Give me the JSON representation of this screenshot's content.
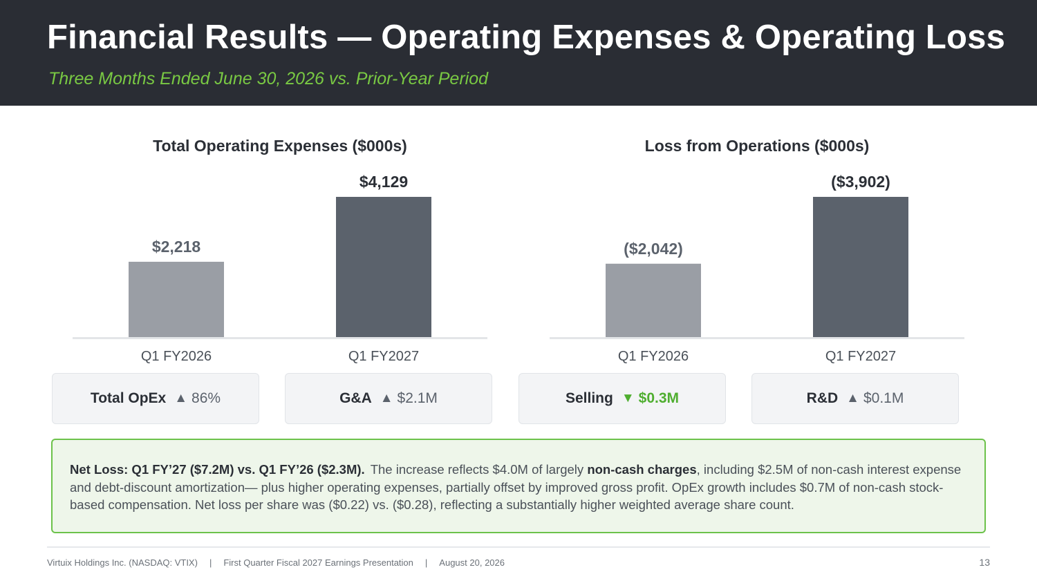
{
  "header": {
    "title": "Financial Results — Operating Expenses & Operating Loss",
    "subtitle": "Three Months Ended June 30, 2026 vs. Prior-Year Period"
  },
  "colors": {
    "header_bg": "#2a2d34",
    "accent_green": "#79c943",
    "bar_prior": "#9a9ea5",
    "bar_current": "#5b626c"
  },
  "chart_data": [
    {
      "type": "bar",
      "title": "Total Operating Expenses  ($000s)",
      "categories": [
        "Q1 FY2026",
        "Q1 FY2027"
      ],
      "values": [
        2218,
        4129
      ],
      "labels": [
        "$2,218",
        "$4,129"
      ]
    },
    {
      "type": "bar",
      "title": "Loss from Operations  ($000s)",
      "categories": [
        "Q1 FY2026",
        "Q1 FY2027"
      ],
      "values": [
        -2042,
        -3902
      ],
      "labels": [
        "($2,042)",
        "($3,902)"
      ]
    }
  ],
  "cards": [
    {
      "label": "Total OpEx",
      "direction": "up",
      "arrow": "▲",
      "value": "86%"
    },
    {
      "label": "G&A",
      "direction": "up",
      "arrow": "▲",
      "value": "$2.1M"
    },
    {
      "label": "Selling",
      "direction": "down",
      "arrow": "▼",
      "value": "$0.3M"
    },
    {
      "label": "R&D",
      "direction": "up",
      "arrow": "▲",
      "value": "$0.1M"
    }
  ],
  "note": {
    "lead": "Net Loss:  Q1 FY’27 ($7.2M) vs. Q1 FY’26 ($2.3M).",
    "text1": "The increase reflects $4.0M of largely ",
    "strong": "non-cash charges",
    "text2": ", including $2.5M of non-cash interest expense and debt-discount amortization— plus higher operating expenses, partially offset by improved gross profit. OpEx growth includes $0.7M of non-cash stock-based compensation. Net loss per share was ($0.22) vs. ($0.28), reflecting a substantially higher weighted average share count."
  },
  "footer": {
    "company": "Virtuix Holdings Inc. (NASDAQ: VTIX)",
    "separator": "|",
    "presentation": "First Quarter Fiscal 2027 Earnings Presentation",
    "date": "August 20, 2026",
    "page": "13"
  }
}
